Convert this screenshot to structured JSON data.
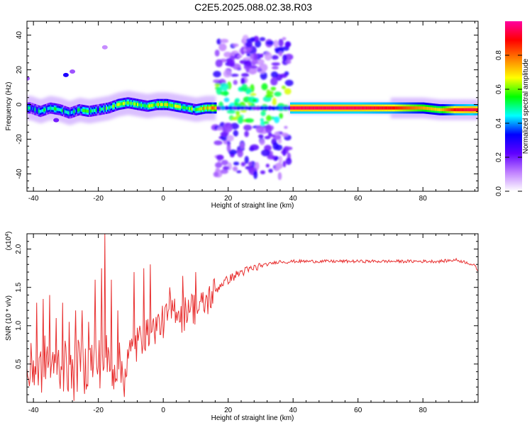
{
  "figure": {
    "title": "C2E5.2025.088.02.38.R03"
  },
  "chart_data": [
    {
      "type": "heatmap",
      "xlabel": "Height of straight line (km)",
      "ylabel": "Frequency (Hz)",
      "xlim": [
        -42,
        97
      ],
      "ylim": [
        -50,
        48
      ],
      "x_ticks": [
        -40,
        -20,
        0,
        20,
        40,
        60,
        80
      ],
      "y_ticks": [
        -40,
        -20,
        0,
        20,
        40
      ],
      "colorbar": {
        "label": "Normalized spectral amplitude",
        "range": [
          0,
          1
        ],
        "ticks": [
          "0.0",
          "0.2",
          "0.4",
          "0.6",
          "0.8"
        ],
        "colors": [
          "#ffffff",
          "#c080ff",
          "#6000ff",
          "#0000ff",
          "#00ffff",
          "#00ff00",
          "#ffff00",
          "#ff8000",
          "#ff0000",
          "#ff00a0"
        ]
      },
      "ridge": {
        "x": [
          -41,
          -38,
          -35,
          -32,
          -29,
          -26,
          -23,
          -20,
          -17,
          -14,
          -11,
          -8,
          -5,
          -2,
          1,
          4,
          7,
          10,
          13,
          16,
          40,
          50,
          60,
          70,
          80,
          85,
          90,
          95,
          97
        ],
        "freq": [
          -2,
          -4,
          -2,
          -3,
          -5,
          -3,
          -4,
          -3,
          -2,
          0,
          1,
          0,
          -1,
          0,
          0,
          -1,
          -2,
          -3,
          -2,
          -2,
          -2,
          -2,
          -2,
          -2,
          -2,
          -3,
          -3,
          -3,
          -3
        ],
        "amplitude": [
          0.4,
          0.45,
          0.45,
          0.45,
          0.4,
          0.45,
          0.5,
          0.45,
          0.5,
          0.55,
          0.6,
          0.6,
          0.55,
          0.6,
          0.65,
          0.6,
          0.6,
          0.55,
          0.7,
          0.8,
          0.95,
          0.95,
          0.95,
          0.9,
          0.75,
          0.7,
          0.9,
          0.95,
          0.9
        ]
      },
      "noise_band": {
        "x_range": [
          16,
          39
        ],
        "freq_range": [
          -42,
          38
        ]
      },
      "grid": false
    },
    {
      "type": "line",
      "xlabel": "Height of straight line (km)",
      "ylabel": "SNR (10 * v/v)",
      "y_multiplier": "(x10",
      "y_multiplier_exp": "4",
      "xlim": [
        -42,
        97
      ],
      "ylim": [
        0,
        2.2
      ],
      "x_ticks": [
        -40,
        -20,
        0,
        20,
        40,
        60,
        80
      ],
      "y_ticks": [
        "0.5",
        "1.0",
        "1.5",
        "2.0"
      ],
      "series": [
        {
          "color": "#e83030",
          "x": [
            -42,
            -40,
            -38,
            -36,
            -34,
            -32,
            -30,
            -28,
            -26,
            -24,
            -22,
            -20,
            -18,
            -16,
            -14,
            -12,
            -10,
            -8,
            -6,
            -4,
            -2,
            0,
            2,
            4,
            6,
            8,
            10,
            12,
            14,
            16,
            18,
            20,
            22,
            24,
            26,
            28,
            30,
            32,
            34,
            36,
            38,
            40,
            45,
            50,
            55,
            60,
            65,
            70,
            75,
            80,
            85,
            88,
            90,
            92,
            94,
            96,
            97
          ],
          "y": [
            0.3,
            0.5,
            0.4,
            0.6,
            0.4,
            0.5,
            0.45,
            0.3,
            0.5,
            0.45,
            0.55,
            0.5,
            0.6,
            0.5,
            0.45,
            0.4,
            0.6,
            0.8,
            0.85,
            0.9,
            1.0,
            1.05,
            1.15,
            1.25,
            1.1,
            1.3,
            1.2,
            1.25,
            1.35,
            1.45,
            1.55,
            1.6,
            1.65,
            1.7,
            1.72,
            1.75,
            1.78,
            1.8,
            1.82,
            1.84,
            1.83,
            1.84,
            1.84,
            1.84,
            1.84,
            1.84,
            1.84,
            1.84,
            1.84,
            1.84,
            1.84,
            1.85,
            1.86,
            1.84,
            1.82,
            1.78,
            1.72
          ]
        }
      ],
      "spikes": {
        "x": [
          -39,
          -37,
          -35,
          -33,
          -31,
          -29,
          -27,
          -25,
          -23,
          -21,
          -19,
          -18,
          -16,
          -14,
          -9,
          -6,
          -4,
          2,
          6,
          10
        ],
        "y": [
          1.3,
          1.35,
          1.4,
          1.1,
          1.3,
          1.05,
          1.2,
          1.2,
          1.05,
          1.6,
          1.75,
          2.2,
          1.6,
          1.2,
          1.7,
          1.75,
          1.8,
          1.5,
          1.65,
          1.7
        ]
      },
      "grid": false
    }
  ]
}
